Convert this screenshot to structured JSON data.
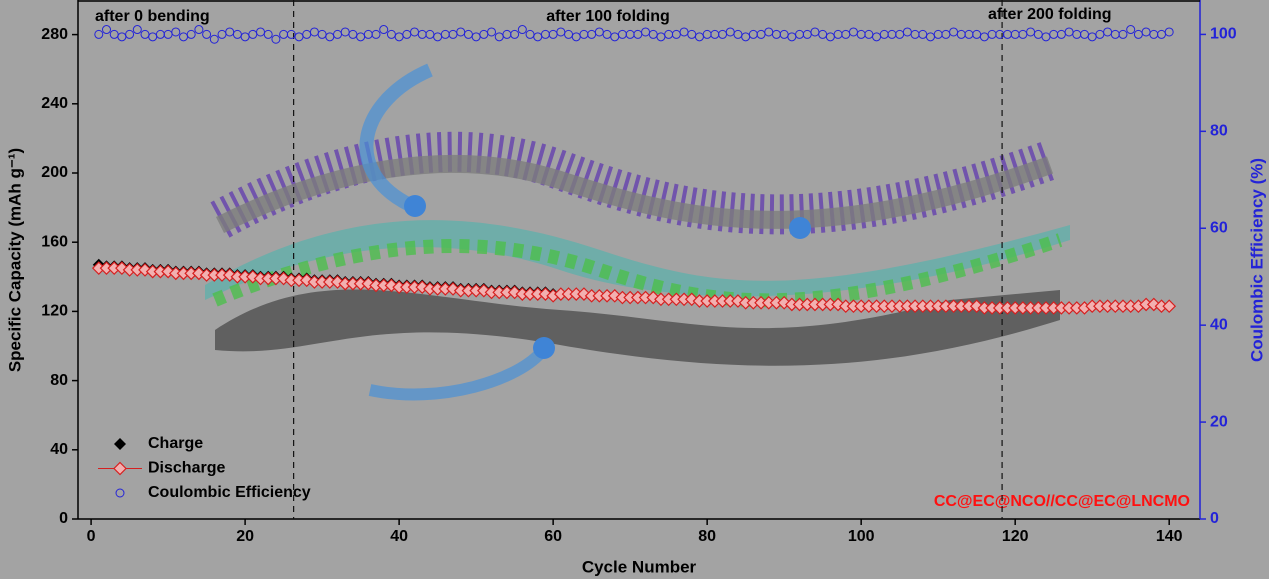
{
  "chart_data": {
    "type": "scatter",
    "x_label": "Cycle Number",
    "y_label": "Specific Capacity (mAh g⁻¹)",
    "y2_label": "Coulombic Efficiency (%)",
    "xlim": [
      -1.7,
      144
    ],
    "xticks": [
      0,
      20,
      40,
      60,
      80,
      100,
      120,
      140
    ],
    "ylim": [
      0,
      300
    ],
    "yticks": [
      0,
      40,
      80,
      120,
      160,
      200,
      240,
      280
    ],
    "y2lim": [
      0,
      107.1
    ],
    "y2ticks": [
      0,
      20,
      40,
      60,
      80,
      100
    ],
    "legend": "lower left",
    "annotations": [
      "after 0 bending",
      "after 100 folding",
      "after 200 folding",
      "CC@EC@NCO//CC@EC@LNCMO"
    ],
    "vlines": [
      26.3,
      118.3
    ],
    "x": [
      1,
      2,
      3,
      4,
      5,
      6,
      7,
      8,
      9,
      10,
      11,
      12,
      13,
      14,
      15,
      16,
      17,
      18,
      19,
      20,
      21,
      22,
      23,
      24,
      25,
      26,
      27,
      28,
      29,
      30,
      31,
      32,
      33,
      34,
      35,
      36,
      37,
      38,
      39,
      40,
      41,
      42,
      43,
      44,
      45,
      46,
      47,
      48,
      49,
      50,
      51,
      52,
      53,
      54,
      55,
      56,
      57,
      58,
      59,
      60,
      61,
      62,
      63,
      64,
      65,
      66,
      67,
      68,
      69,
      70,
      71,
      72,
      73,
      74,
      75,
      76,
      77,
      78,
      79,
      80,
      81,
      82,
      83,
      84,
      85,
      86,
      87,
      88,
      89,
      90,
      91,
      92,
      93,
      94,
      95,
      96,
      97,
      98,
      99,
      100,
      101,
      102,
      103,
      104,
      105,
      106,
      107,
      108,
      109,
      110,
      111,
      112,
      113,
      114,
      115,
      116,
      117,
      118,
      119,
      120,
      121,
      122,
      123,
      124,
      125,
      126,
      127,
      128,
      129,
      130,
      131,
      132,
      133,
      134,
      135,
      136,
      137,
      138,
      139,
      140
    ],
    "series": [
      {
        "name": "Charge",
        "color": "#000000",
        "marker": "diamond",
        "values": [
          147,
          146,
          146,
          146,
          145,
          145,
          145,
          144,
          144,
          144,
          143,
          143,
          143,
          143,
          142,
          142,
          142,
          142,
          141,
          141,
          141,
          140,
          140,
          140,
          140,
          139,
          139,
          139,
          138,
          138,
          138,
          138,
          137,
          137,
          137,
          137,
          136,
          136,
          136,
          135,
          135,
          135,
          135,
          134,
          134,
          134,
          134,
          133,
          133,
          133,
          133,
          132,
          132,
          132,
          132,
          131,
          131,
          131,
          131,
          130,
          130,
          130,
          130,
          130,
          129,
          129,
          129,
          129,
          128,
          128,
          128,
          128,
          128,
          127,
          127,
          127,
          127,
          127,
          126,
          126,
          126,
          126,
          126,
          126,
          125,
          125,
          125,
          125,
          125,
          125,
          124,
          124,
          124,
          124,
          124,
          124,
          124,
          123,
          123,
          123,
          123,
          123,
          123,
          123,
          123,
          123,
          123,
          123,
          123,
          123,
          123,
          123,
          123,
          123,
          123,
          122,
          122,
          122,
          122,
          122,
          122,
          122,
          122,
          122,
          122,
          122,
          122,
          122,
          122,
          123,
          123,
          123,
          123,
          123,
          123,
          123,
          124,
          124,
          123,
          123
        ]
      },
      {
        "name": "Discharge",
        "color": "#d62020",
        "marker": "open-diamond",
        "values": [
          145,
          145,
          145,
          145,
          144,
          144,
          144,
          143,
          143,
          143,
          142,
          142,
          142,
          142,
          141,
          141,
          141,
          141,
          140,
          140,
          140,
          139,
          139,
          139,
          139,
          138,
          138,
          138,
          137,
          137,
          137,
          137,
          136,
          136,
          136,
          136,
          135,
          135,
          135,
          134,
          134,
          134,
          134,
          133,
          133,
          133,
          133,
          132,
          132,
          132,
          132,
          131,
          131,
          131,
          131,
          130,
          130,
          130,
          130,
          129,
          130,
          130,
          130,
          130,
          129,
          129,
          129,
          129,
          128,
          128,
          128,
          128,
          128,
          127,
          127,
          127,
          127,
          127,
          126,
          126,
          126,
          126,
          126,
          126,
          125,
          125,
          125,
          125,
          125,
          125,
          124,
          124,
          124,
          124,
          124,
          124,
          124,
          123,
          123,
          123,
          123,
          123,
          123,
          123,
          123,
          123,
          123,
          123,
          123,
          123,
          123,
          123,
          123,
          123,
          123,
          122,
          122,
          122,
          122,
          122,
          122,
          122,
          122,
          122,
          122,
          122,
          122,
          122,
          122,
          123,
          123,
          123,
          123,
          123,
          123,
          123,
          124,
          124,
          123,
          123
        ]
      },
      {
        "name": "Coulombic Efficiency",
        "color": "#2323d8",
        "marker": "open-circle",
        "axis": "y2",
        "values": [
          100,
          101,
          100,
          99.5,
          100,
          101,
          100,
          99.5,
          100,
          100,
          100.5,
          99.5,
          100,
          101,
          100,
          99,
          100,
          100.5,
          100,
          99.5,
          100,
          100.5,
          100,
          99,
          100,
          100,
          99.5,
          100,
          100.5,
          100,
          99.5,
          100,
          100.5,
          100,
          99.5,
          100,
          100,
          101,
          100,
          99.5,
          100,
          100.5,
          100,
          100,
          99.5,
          100,
          100,
          100.5,
          100,
          99.5,
          100,
          100.5,
          99.5,
          100,
          100,
          101,
          100,
          99.5,
          100,
          100,
          100.5,
          100,
          99.5,
          100,
          100,
          100.5,
          100,
          99.5,
          100,
          100,
          100,
          100.5,
          100,
          99.5,
          100,
          100,
          100.5,
          100,
          99.5,
          100,
          100,
          100,
          100.5,
          100,
          99.5,
          100,
          100,
          100.5,
          100,
          100,
          99.5,
          100,
          100,
          100.5,
          100,
          99.5,
          100,
          100,
          100.5,
          100,
          100,
          99.5,
          100,
          100,
          100,
          100.5,
          100,
          100,
          99.5,
          100,
          100,
          100.5,
          100,
          100,
          100,
          99.5,
          100,
          100,
          100,
          100,
          100,
          100.5,
          100,
          99.5,
          100,
          100,
          100.5,
          100,
          100,
          99.5,
          100,
          100.5,
          100,
          100,
          101,
          100,
          100.5,
          100,
          100,
          100.5
        ]
      }
    ]
  }
}
